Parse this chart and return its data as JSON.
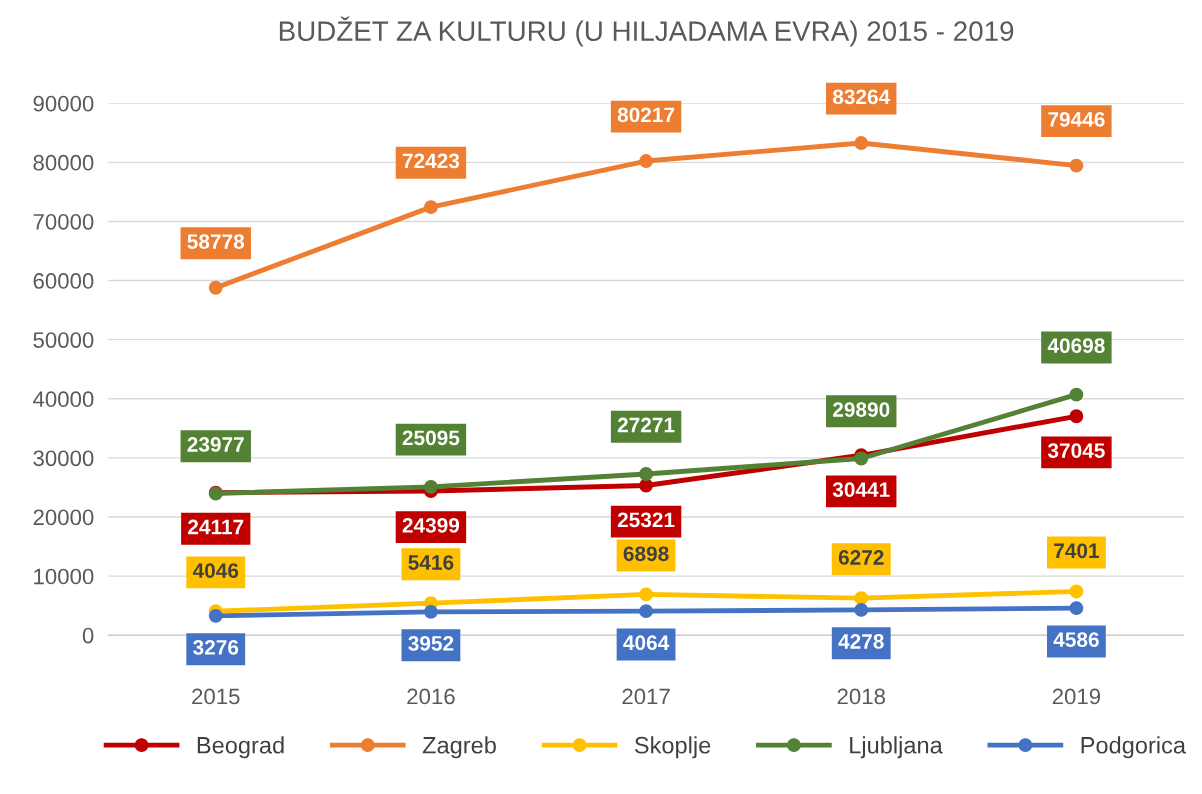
{
  "chart_data": {
    "type": "line",
    "title": "BUDŽET ZA KULTURU (U HILJADAMA EVRA) 2015 - 2019",
    "categories": [
      "2015",
      "2016",
      "2017",
      "2018",
      "2019"
    ],
    "series": [
      {
        "name": "Beograd",
        "color": "#c00000",
        "values": [
          24117,
          24399,
          25321,
          30441,
          37045
        ]
      },
      {
        "name": "Zagreb",
        "color": "#ed7d31",
        "values": [
          58778,
          72423,
          80217,
          83264,
          79446
        ]
      },
      {
        "name": "Skoplje",
        "color": "#ffc000",
        "values": [
          4046,
          5416,
          6898,
          6272,
          7401
        ]
      },
      {
        "name": "Ljubljana",
        "color": "#548235",
        "values": [
          23977,
          25095,
          27271,
          29890,
          40698
        ]
      },
      {
        "name": "Podgorica",
        "color": "#4472c4",
        "values": [
          3276,
          3952,
          4064,
          4278,
          4586
        ]
      }
    ],
    "ylim": [
      0,
      90000
    ],
    "yticks": [
      0,
      10000,
      20000,
      30000,
      40000,
      50000,
      60000,
      70000,
      80000,
      90000
    ],
    "grid": "y",
    "legend": "bottom",
    "marker": "circle",
    "line_style": "solid",
    "data_labels": true
  }
}
